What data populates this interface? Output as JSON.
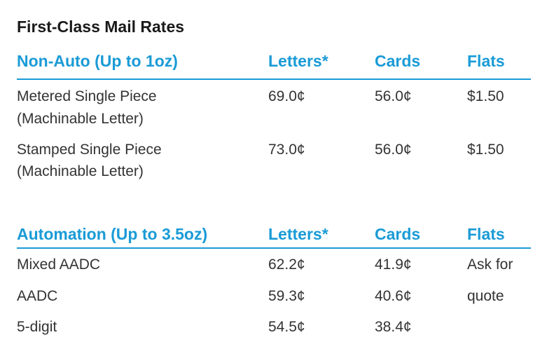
{
  "title": "First-Class Mail Rates",
  "tables": [
    {
      "header": [
        "Non-Auto (Up to 1oz)",
        "Letters*",
        "Cards",
        "Flats"
      ],
      "rows": [
        [
          [
            "Metered Single Piece",
            "(Machinable Letter)"
          ],
          [
            "69.0¢"
          ],
          [
            "56.0¢"
          ],
          [
            "$1.50"
          ]
        ],
        [
          [
            "Stamped Single Piece",
            "(Machinable Letter)"
          ],
          [
            "73.0¢"
          ],
          [
            "56.0¢"
          ],
          [
            "$1.50"
          ]
        ]
      ]
    },
    {
      "header": [
        "Automation (Up to 3.5oz)",
        "Letters*",
        "Cards",
        "Flats"
      ],
      "rows": [
        [
          [
            "Mixed AADC"
          ],
          [
            "62.2¢"
          ],
          [
            "41.9¢"
          ]
        ],
        [
          [
            "AADC"
          ],
          [
            "59.3¢"
          ],
          [
            "40.6¢"
          ]
        ],
        [
          [
            "5-digit"
          ],
          [
            "54.5¢"
          ],
          [
            "38.4¢"
          ]
        ]
      ],
      "flats_note": [
        "Ask for",
        "quote"
      ]
    }
  ]
}
